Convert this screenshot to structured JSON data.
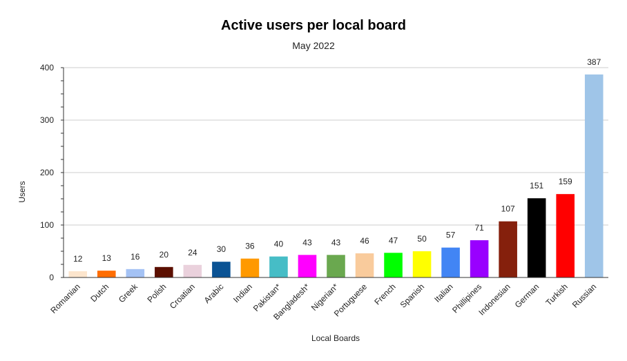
{
  "chart_data": {
    "type": "bar",
    "title": "Active users per local board",
    "subtitle": "May 2022",
    "xlabel": "Local Boards",
    "ylabel": "Users",
    "ylim": [
      0,
      400
    ],
    "yticks": [
      0,
      100,
      200,
      300,
      400
    ],
    "grid": true,
    "legend": "none",
    "categories": [
      "Romanian",
      "Dutch",
      "Greek",
      "Polish",
      "Croatian",
      "Arabic",
      "Indian",
      "Pakistan*",
      "Bangladesh*",
      "Nigerian*",
      "Portuguese",
      "French",
      "Spanish",
      "Italian",
      "Phillipines",
      "Indonesian",
      "German",
      "Turkish",
      "Russian"
    ],
    "values": [
      12,
      13,
      16,
      20,
      24,
      30,
      36,
      40,
      43,
      43,
      46,
      47,
      50,
      57,
      71,
      107,
      151,
      159,
      387
    ],
    "colors": [
      "#fce5cd",
      "#ff6d01",
      "#a4c2f4",
      "#5b0f00",
      "#ead1dc",
      "#0b5394",
      "#ff9900",
      "#46bdc6",
      "#ff00ff",
      "#6aa84f",
      "#f9cb9c",
      "#00ff00",
      "#ffff00",
      "#4285f4",
      "#9900ff",
      "#85200c",
      "#000000",
      "#ff0000",
      "#9fc5e8"
    ]
  }
}
